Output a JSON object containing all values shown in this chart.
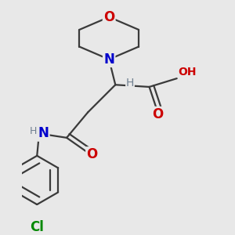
{
  "background_color": "#e8e8e8",
  "bond_color": "#3a3a3a",
  "O_color": "#cc0000",
  "N_color": "#0000cc",
  "Cl_color": "#008800",
  "H_color": "#708090",
  "line_width": 1.6,
  "font_size": 12,
  "font_size_small": 10,
  "figsize": [
    3.0,
    3.0
  ],
  "dpi": 100,
  "xlim": [
    0.05,
    0.95
  ],
  "ylim": [
    0.02,
    0.98
  ]
}
